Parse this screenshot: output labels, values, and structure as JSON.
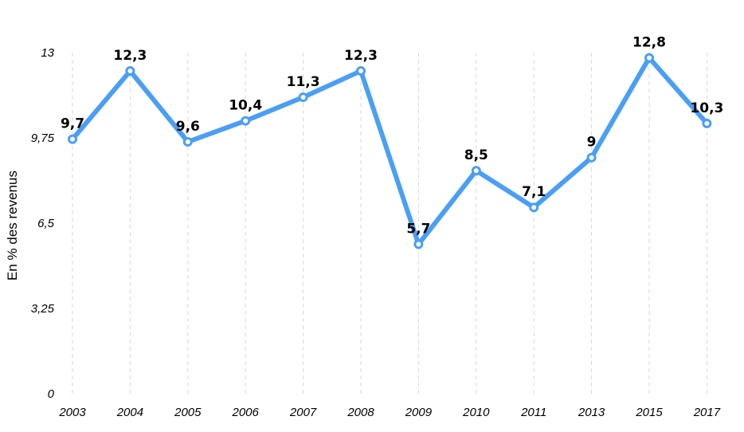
{
  "chart_data": {
    "type": "line",
    "title": "",
    "xlabel": "",
    "ylabel": "En % des revenus",
    "ylim": [
      0,
      13
    ],
    "yticks": [
      "0",
      "3,25",
      "6,5",
      "9,75",
      "13"
    ],
    "ytick_values": [
      0,
      3.25,
      6.5,
      9.75,
      13
    ],
    "grid": "vertical-dashed",
    "legend": "none",
    "categories": [
      "2003",
      "2004",
      "2005",
      "2006",
      "2007",
      "2008",
      "2009",
      "2010",
      "2011",
      "2013",
      "2015",
      "2017"
    ],
    "series": [
      {
        "values": [
          9.7,
          12.3,
          9.6,
          10.4,
          11.3,
          12.3,
          5.7,
          8.5,
          7.1,
          9,
          12.8,
          10.3
        ],
        "labels": [
          "9,7",
          "12,3",
          "9,6",
          "10,4",
          "11,3",
          "12,3",
          "5,7",
          "8,5",
          "7,1",
          "9",
          "12,8",
          "10,3"
        ],
        "color": "#4a9ff5"
      }
    ]
  }
}
